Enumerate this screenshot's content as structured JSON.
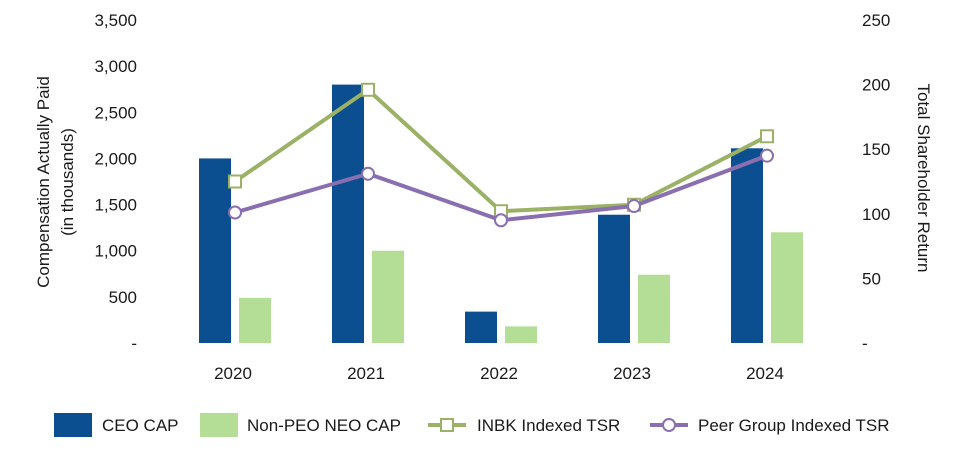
{
  "chart_data": {
    "type": "bar",
    "categories": [
      "2020",
      "2021",
      "2022",
      "2023",
      "2024"
    ],
    "y_left": {
      "label_line1": "Compensation Actually Paid",
      "label_line2": "(in thousands)",
      "ylim": [
        0,
        3500
      ],
      "ticks": [
        0,
        500,
        1000,
        1500,
        2000,
        2500,
        3000,
        3500
      ],
      "tick_labels": [
        "-",
        "500",
        "1,000",
        "1,500",
        "2,000",
        "2,500",
        "3,000",
        "3,500"
      ]
    },
    "y_right": {
      "label": "Total Shareholder Return",
      "ylim": [
        0,
        250
      ],
      "ticks": [
        0,
        50,
        100,
        150,
        200,
        250
      ],
      "tick_labels": [
        "-",
        "50",
        "100",
        "150",
        "200",
        "250"
      ]
    },
    "series": [
      {
        "name": "CEO CAP",
        "kind": "bar",
        "axis": "left",
        "color": "#0b4f91",
        "values": [
          2000,
          2800,
          340,
          1390,
          2110
        ]
      },
      {
        "name": "Non-PEO NEO CAP",
        "kind": "bar",
        "axis": "left",
        "color": "#b4dd96",
        "values": [
          490,
          1000,
          180,
          740,
          1200
        ]
      },
      {
        "name": "INBK Indexed TSR",
        "kind": "line",
        "axis": "right",
        "color": "#9bb166",
        "marker": "square",
        "values": [
          125,
          196,
          102,
          107,
          160
        ]
      },
      {
        "name": "Peer Group Indexed TSR",
        "kind": "line",
        "axis": "right",
        "color": "#8a6fb0",
        "marker": "circle",
        "values": [
          101,
          131,
          95,
          106,
          145
        ]
      }
    ],
    "grid": false,
    "legend_position": "bottom"
  }
}
